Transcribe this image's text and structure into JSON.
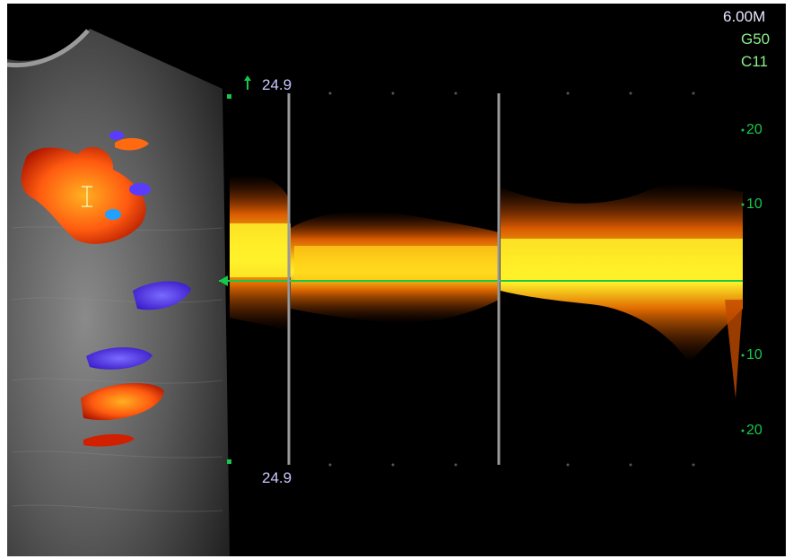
{
  "params": {
    "frequency": "6.00M",
    "gain": "G50",
    "color": "C11"
  },
  "velocity": {
    "top": "24.9",
    "bottom": "24.9",
    "scale": [
      "20",
      "10",
      "10",
      "20"
    ]
  },
  "colors": {
    "background": "#000000",
    "param_text": "#e8e8ff",
    "param_green": "#8cf08c",
    "scale_green": "#17c94a",
    "velocity_text": "#c8c8ff",
    "spectrum_core": "#fff22a",
    "spectrum_edge": "#e06a00",
    "flow_red": "#ff5a10",
    "flow_blue": "#5a3cff"
  }
}
